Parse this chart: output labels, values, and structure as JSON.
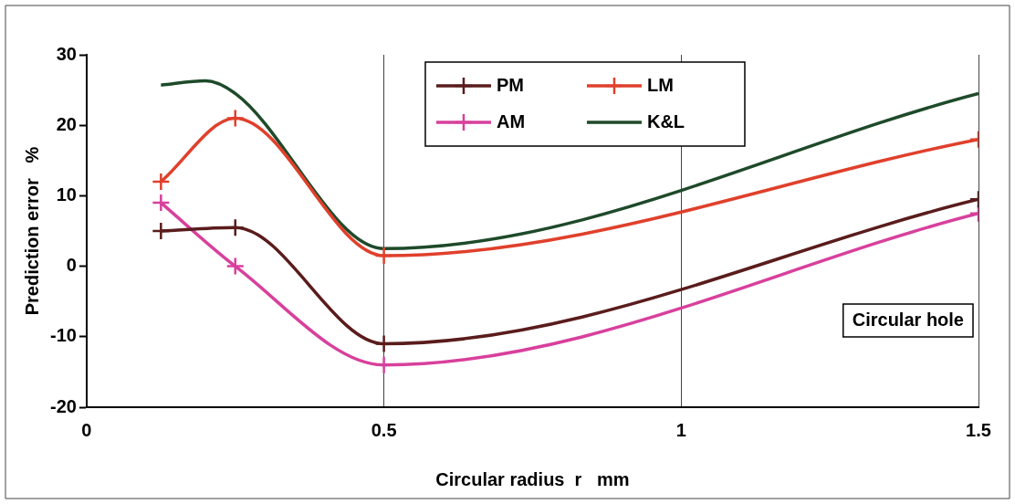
{
  "chart_data": {
    "type": "line",
    "xlabel": "Circular radius  r   mm",
    "ylabel": "Prediction error   %",
    "xlim": [
      0,
      1.5
    ],
    "xticks": [
      0,
      0.5,
      1,
      1.5
    ],
    "ylim": [
      -20,
      30
    ],
    "yticks": [
      -20,
      -10,
      0,
      10,
      20,
      30
    ],
    "grid": "x",
    "legend": "top",
    "annotations": [
      "Circular hole"
    ],
    "series": [
      {
        "name": "PM",
        "color": "#5a1c1c",
        "marker": "cross",
        "x": [
          0.125,
          0.25,
          0.5,
          1.5
        ],
        "values": [
          5,
          5.5,
          -11,
          9.5
        ]
      },
      {
        "name": "LM",
        "color": "#e0402c",
        "marker": "cross",
        "x": [
          0.125,
          0.25,
          0.5,
          1.5
        ],
        "values": [
          12,
          21,
          1.5,
          18
        ]
      },
      {
        "name": "AM",
        "color": "#d8409c",
        "marker": "cross",
        "x": [
          0.125,
          0.25,
          0.5,
          1.5
        ],
        "values": [
          9,
          0,
          -14,
          7.5
        ]
      },
      {
        "name": "K&L",
        "color": "#1e4a2a",
        "marker": "none",
        "x": [
          0.125,
          0.2,
          0.25,
          0.5,
          1.5
        ],
        "values": [
          25.7,
          26.3,
          24.5,
          2.5,
          24.5
        ]
      }
    ]
  }
}
